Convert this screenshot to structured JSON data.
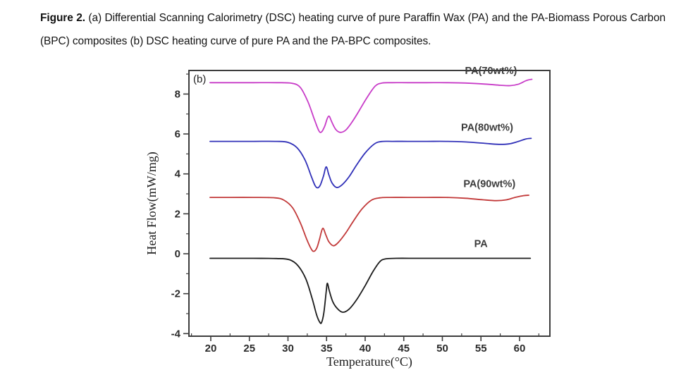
{
  "caption": {
    "label": "Figure 2.",
    "text": " (a) Differential Scanning Calorimetry (DSC) heating curve of pure Paraffin Wax (PA) and the PA-Biomass Porous Carbon (BPC) composites (b) DSC heating curve of pure PA and the PA-BPC composites."
  },
  "chart_data": {
    "type": "line",
    "panel_label": "(b)",
    "xlabel": "Temperature(°C)",
    "ylabel": "Heat Flow(mW/mg)",
    "xlim": [
      17.17,
      63.93
    ],
    "ylim": [
      -4.13,
      9.18
    ],
    "x_ticks": [
      20,
      25,
      30,
      35,
      40,
      45,
      50,
      55,
      60
    ],
    "x_minor_ticks": [
      17.5,
      22.5,
      27.5,
      32.5,
      37.5,
      42.5,
      47.5,
      52.5,
      57.5,
      62.5
    ],
    "y_ticks": [
      -4,
      -2,
      0,
      2,
      4,
      6,
      8
    ],
    "y_minor_ticks": [
      -3,
      -1,
      1,
      3,
      5,
      7,
      9
    ],
    "grid": false,
    "legend_position": "inline-labels",
    "axis_color": "#3d3d3d",
    "series": [
      {
        "name": "PA(70wt%)",
        "color": "#c83cc8",
        "baseline": 8.57,
        "label": {
          "t": 56.3,
          "v": 9.0
        },
        "points": [
          [
            19.9,
            8.57
          ],
          [
            22.5,
            8.57
          ],
          [
            25.5,
            8.57
          ],
          [
            28.5,
            8.57
          ],
          [
            30.5,
            8.54
          ],
          [
            31.6,
            8.33
          ],
          [
            32.6,
            7.6
          ],
          [
            33.4,
            6.75
          ],
          [
            34.0,
            6.16
          ],
          [
            34.35,
            6.1
          ],
          [
            34.75,
            6.38
          ],
          [
            35.1,
            6.78
          ],
          [
            35.35,
            6.88
          ],
          [
            35.7,
            6.58
          ],
          [
            36.2,
            6.22
          ],
          [
            36.8,
            6.08
          ],
          [
            37.5,
            6.2
          ],
          [
            38.3,
            6.6
          ],
          [
            39.2,
            7.15
          ],
          [
            40.2,
            7.8
          ],
          [
            41.3,
            8.4
          ],
          [
            42.2,
            8.55
          ],
          [
            43.5,
            8.57
          ],
          [
            45.5,
            8.57
          ],
          [
            48.0,
            8.57
          ],
          [
            50.5,
            8.57
          ],
          [
            53.0,
            8.55
          ],
          [
            55.5,
            8.5
          ],
          [
            57.5,
            8.44
          ],
          [
            58.8,
            8.42
          ],
          [
            59.9,
            8.5
          ],
          [
            60.9,
            8.68
          ],
          [
            61.6,
            8.74
          ]
        ]
      },
      {
        "name": "PA(80wt%)",
        "color": "#3030b8",
        "baseline": 5.63,
        "label": {
          "t": 55.8,
          "v": 6.17
        },
        "points": [
          [
            19.9,
            5.63
          ],
          [
            22.5,
            5.63
          ],
          [
            25.5,
            5.63
          ],
          [
            28.5,
            5.63
          ],
          [
            30.0,
            5.58
          ],
          [
            31.2,
            5.3
          ],
          [
            32.2,
            4.7
          ],
          [
            33.0,
            3.9
          ],
          [
            33.5,
            3.42
          ],
          [
            33.85,
            3.3
          ],
          [
            34.2,
            3.45
          ],
          [
            34.6,
            3.9
          ],
          [
            34.95,
            4.35
          ],
          [
            35.3,
            3.95
          ],
          [
            35.7,
            3.55
          ],
          [
            36.3,
            3.32
          ],
          [
            37.0,
            3.45
          ],
          [
            37.9,
            3.85
          ],
          [
            38.9,
            4.45
          ],
          [
            40.0,
            5.05
          ],
          [
            41.2,
            5.5
          ],
          [
            42.1,
            5.62
          ],
          [
            43.5,
            5.63
          ],
          [
            45.5,
            5.63
          ],
          [
            48.0,
            5.63
          ],
          [
            50.5,
            5.63
          ],
          [
            53.0,
            5.6
          ],
          [
            55.5,
            5.53
          ],
          [
            57.3,
            5.48
          ],
          [
            58.6,
            5.5
          ],
          [
            59.8,
            5.62
          ],
          [
            60.8,
            5.75
          ],
          [
            61.5,
            5.78
          ]
        ]
      },
      {
        "name": "PA(90wt%)",
        "color": "#c23939",
        "baseline": 2.82,
        "label": {
          "t": 56.1,
          "v": 3.34
        },
        "points": [
          [
            19.9,
            2.82
          ],
          [
            22.5,
            2.82
          ],
          [
            25.5,
            2.82
          ],
          [
            28.3,
            2.8
          ],
          [
            29.5,
            2.68
          ],
          [
            30.6,
            2.3
          ],
          [
            31.6,
            1.55
          ],
          [
            32.4,
            0.75
          ],
          [
            33.0,
            0.25
          ],
          [
            33.35,
            0.12
          ],
          [
            33.75,
            0.3
          ],
          [
            34.1,
            0.75
          ],
          [
            34.5,
            1.27
          ],
          [
            34.9,
            0.95
          ],
          [
            35.3,
            0.6
          ],
          [
            35.9,
            0.4
          ],
          [
            36.6,
            0.6
          ],
          [
            37.5,
            1.05
          ],
          [
            38.5,
            1.65
          ],
          [
            39.6,
            2.25
          ],
          [
            40.8,
            2.68
          ],
          [
            41.9,
            2.8
          ],
          [
            43.2,
            2.82
          ],
          [
            45.5,
            2.82
          ],
          [
            48.0,
            2.82
          ],
          [
            50.5,
            2.82
          ],
          [
            53.0,
            2.78
          ],
          [
            55.3,
            2.7
          ],
          [
            57.0,
            2.66
          ],
          [
            58.3,
            2.7
          ],
          [
            59.4,
            2.82
          ],
          [
            60.5,
            2.91
          ],
          [
            61.2,
            2.93
          ]
        ]
      },
      {
        "name": "PA",
        "color": "#1b1b1b",
        "baseline": -0.23,
        "label": {
          "t": 55.0,
          "v": 0.34
        },
        "points": [
          [
            19.9,
            -0.23
          ],
          [
            22.5,
            -0.23
          ],
          [
            25.5,
            -0.23
          ],
          [
            28.5,
            -0.24
          ],
          [
            30.2,
            -0.3
          ],
          [
            31.3,
            -0.6
          ],
          [
            32.3,
            -1.25
          ],
          [
            33.1,
            -2.2
          ],
          [
            33.7,
            -3.05
          ],
          [
            34.1,
            -3.42
          ],
          [
            34.35,
            -3.45
          ],
          [
            34.65,
            -2.95
          ],
          [
            34.95,
            -1.9
          ],
          [
            35.1,
            -1.48
          ],
          [
            35.35,
            -1.85
          ],
          [
            35.8,
            -2.4
          ],
          [
            36.4,
            -2.75
          ],
          [
            37.1,
            -2.93
          ],
          [
            37.9,
            -2.78
          ],
          [
            38.9,
            -2.3
          ],
          [
            40.0,
            -1.6
          ],
          [
            41.0,
            -0.9
          ],
          [
            41.9,
            -0.4
          ],
          [
            42.6,
            -0.26
          ],
          [
            44.0,
            -0.23
          ],
          [
            46.5,
            -0.23
          ],
          [
            49.0,
            -0.23
          ],
          [
            52.0,
            -0.23
          ],
          [
            55.0,
            -0.23
          ],
          [
            58.0,
            -0.23
          ],
          [
            61.4,
            -0.23
          ]
        ]
      }
    ]
  }
}
